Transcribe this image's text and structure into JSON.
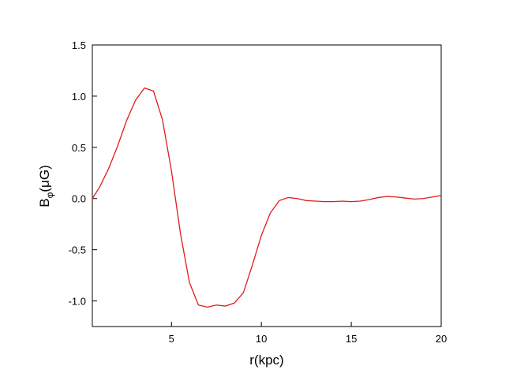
{
  "chart_data": {
    "type": "line",
    "xlabel": "r(kpc)",
    "ylabel": [
      "B",
      "φ",
      "(μG)"
    ],
    "x": [
      0.6,
      1.0,
      1.5,
      2.0,
      2.5,
      3.0,
      3.5,
      4.0,
      4.5,
      5.0,
      5.5,
      6.0,
      6.5,
      7.0,
      7.5,
      8.0,
      8.5,
      9.0,
      9.5,
      10.0,
      10.5,
      11.0,
      11.5,
      12.0,
      12.5,
      13.0,
      13.5,
      14.0,
      14.5,
      15.0,
      15.5,
      16.0,
      16.5,
      17.0,
      17.5,
      18.0,
      18.5,
      19.0,
      19.5,
      20.0
    ],
    "series": [
      {
        "color": "#e31a1c",
        "values": [
          0.0,
          0.11,
          0.29,
          0.51,
          0.76,
          0.96,
          1.08,
          1.05,
          0.77,
          0.27,
          -0.34,
          -0.82,
          -1.04,
          -1.06,
          -1.04,
          -1.05,
          -1.02,
          -0.92,
          -0.65,
          -0.36,
          -0.14,
          -0.02,
          0.01,
          0.0,
          -0.02,
          -0.025,
          -0.03,
          -0.03,
          -0.025,
          -0.03,
          -0.025,
          -0.01,
          0.01,
          0.02,
          0.015,
          0.005,
          -0.005,
          0.0,
          0.015,
          0.03
        ]
      }
    ],
    "xlim": [
      0.6,
      20
    ],
    "ylim": [
      -1.25,
      1.5
    ],
    "xticks": [
      5,
      10,
      15,
      20
    ],
    "yticks": [
      {
        "value": -1.0,
        "label": "-1.0"
      },
      -0.5,
      {
        "value": 0.0,
        "label": "0.0"
      },
      0.5,
      {
        "value": 1.0,
        "label": "1.0"
      },
      1.5
    ],
    "grid": false
  }
}
